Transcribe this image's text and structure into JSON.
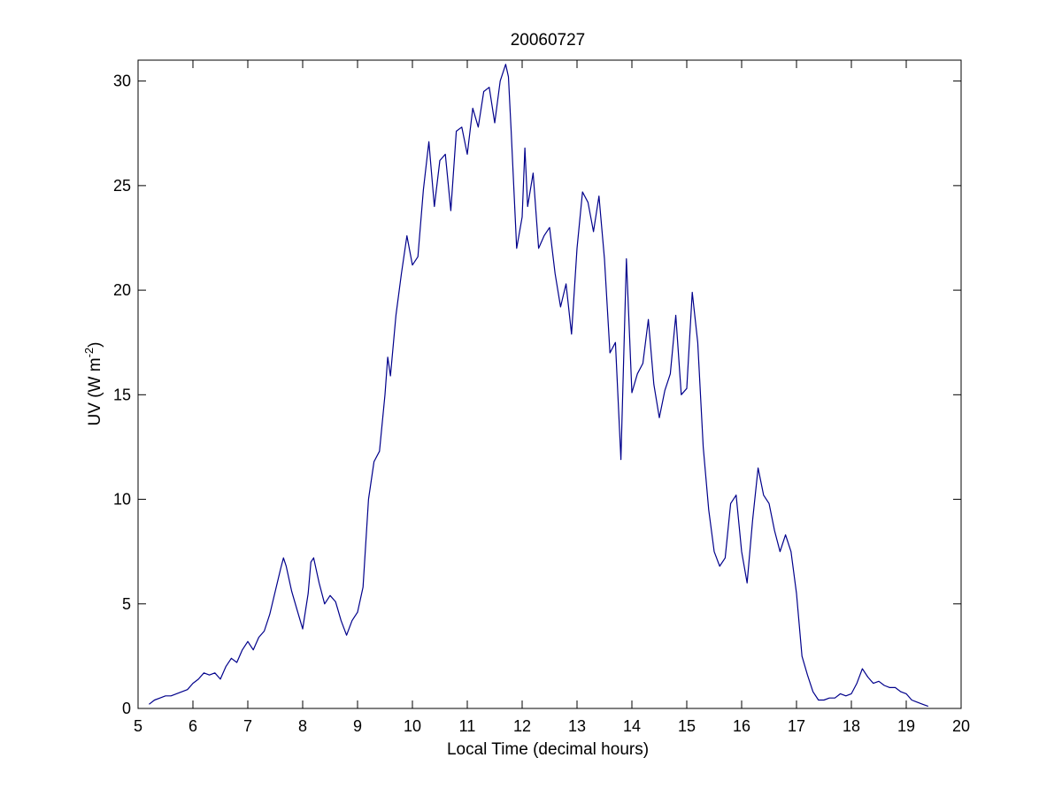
{
  "chart_data": {
    "type": "line",
    "title": "20060727",
    "xlabel": "Local Time (decimal hours)",
    "ylabel": {
      "main": "UV (W m",
      "superscript": "-2",
      "close": ")"
    },
    "xlim": [
      5,
      20
    ],
    "ylim": [
      0,
      31
    ],
    "xticks": [
      5,
      6,
      7,
      8,
      9,
      10,
      11,
      12,
      13,
      14,
      15,
      16,
      17,
      18,
      19,
      20
    ],
    "yticks": [
      0,
      5,
      10,
      15,
      20,
      25,
      30
    ],
    "grid": false,
    "line_color": "#00008b",
    "series": [
      {
        "x": [
          5.2,
          5.3,
          5.4,
          5.5,
          5.6,
          5.7,
          5.8,
          5.9,
          6.0,
          6.1,
          6.2,
          6.3,
          6.4,
          6.5,
          6.6,
          6.7,
          6.8,
          6.9,
          7.0,
          7.1,
          7.2,
          7.3,
          7.4,
          7.5,
          7.6,
          7.65,
          7.7,
          7.8,
          7.9,
          8.0,
          8.1,
          8.15,
          8.2,
          8.3,
          8.4,
          8.5,
          8.6,
          8.7,
          8.8,
          8.9,
          9.0,
          9.1,
          9.2,
          9.3,
          9.4,
          9.5,
          9.55,
          9.6,
          9.7,
          9.8,
          9.9,
          10.0,
          10.1,
          10.2,
          10.3,
          10.4,
          10.5,
          10.6,
          10.7,
          10.8,
          10.9,
          11.0,
          11.1,
          11.2,
          11.3,
          11.4,
          11.5,
          11.6,
          11.7,
          11.75,
          11.8,
          11.9,
          12.0,
          12.05,
          12.1,
          12.2,
          12.3,
          12.4,
          12.5,
          12.6,
          12.7,
          12.8,
          12.9,
          13.0,
          13.1,
          13.2,
          13.3,
          13.4,
          13.5,
          13.6,
          13.7,
          13.8,
          13.9,
          14.0,
          14.1,
          14.2,
          14.3,
          14.4,
          14.5,
          14.6,
          14.7,
          14.8,
          14.9,
          15.0,
          15.1,
          15.2,
          15.3,
          15.4,
          15.5,
          15.6,
          15.7,
          15.8,
          15.9,
          16.0,
          16.1,
          16.2,
          16.3,
          16.4,
          16.5,
          16.6,
          16.7,
          16.8,
          16.9,
          17.0,
          17.1,
          17.2,
          17.3,
          17.4,
          17.5,
          17.6,
          17.7,
          17.8,
          17.9,
          18.0,
          18.1,
          18.2,
          18.3,
          18.4,
          18.5,
          18.6,
          18.7,
          18.8,
          18.9,
          19.0,
          19.1,
          19.2,
          19.3,
          19.4
        ],
        "values": [
          0.2,
          0.4,
          0.5,
          0.6,
          0.6,
          0.7,
          0.8,
          0.9,
          1.2,
          1.4,
          1.7,
          1.6,
          1.7,
          1.4,
          2.0,
          2.4,
          2.2,
          2.8,
          3.2,
          2.8,
          3.4,
          3.7,
          4.5,
          5.6,
          6.7,
          7.2,
          6.8,
          5.6,
          4.7,
          3.8,
          5.5,
          7.0,
          7.2,
          6.0,
          5.0,
          5.4,
          5.1,
          4.2,
          3.5,
          4.2,
          4.6,
          5.8,
          10.0,
          11.8,
          12.3,
          15.0,
          16.8,
          15.9,
          18.8,
          20.8,
          22.6,
          21.2,
          21.6,
          24.8,
          27.1,
          24.0,
          26.2,
          26.5,
          23.8,
          27.6,
          27.8,
          26.5,
          28.7,
          27.8,
          29.5,
          29.7,
          28.0,
          30.0,
          30.8,
          30.2,
          27.6,
          22.0,
          23.5,
          26.8,
          24.0,
          25.6,
          22.0,
          22.6,
          23.0,
          20.8,
          19.2,
          20.3,
          17.9,
          22.0,
          24.7,
          24.2,
          22.8,
          24.5,
          21.5,
          17.0,
          17.5,
          11.9,
          21.5,
          15.1,
          16.0,
          16.5,
          18.6,
          15.5,
          13.9,
          15.2,
          16.0,
          18.8,
          15.0,
          15.3,
          19.9,
          17.5,
          12.5,
          9.5,
          7.5,
          6.8,
          7.2,
          9.8,
          10.2,
          7.5,
          6.0,
          9.0,
          11.5,
          10.2,
          9.8,
          8.5,
          7.5,
          8.3,
          7.5,
          5.5,
          2.5,
          1.6,
          0.8,
          0.4,
          0.4,
          0.5,
          0.5,
          0.7,
          0.6,
          0.7,
          1.2,
          1.9,
          1.5,
          1.2,
          1.3,
          1.1,
          1.0,
          1.0,
          0.8,
          0.7,
          0.4,
          0.3,
          0.2,
          0.1
        ]
      }
    ]
  }
}
